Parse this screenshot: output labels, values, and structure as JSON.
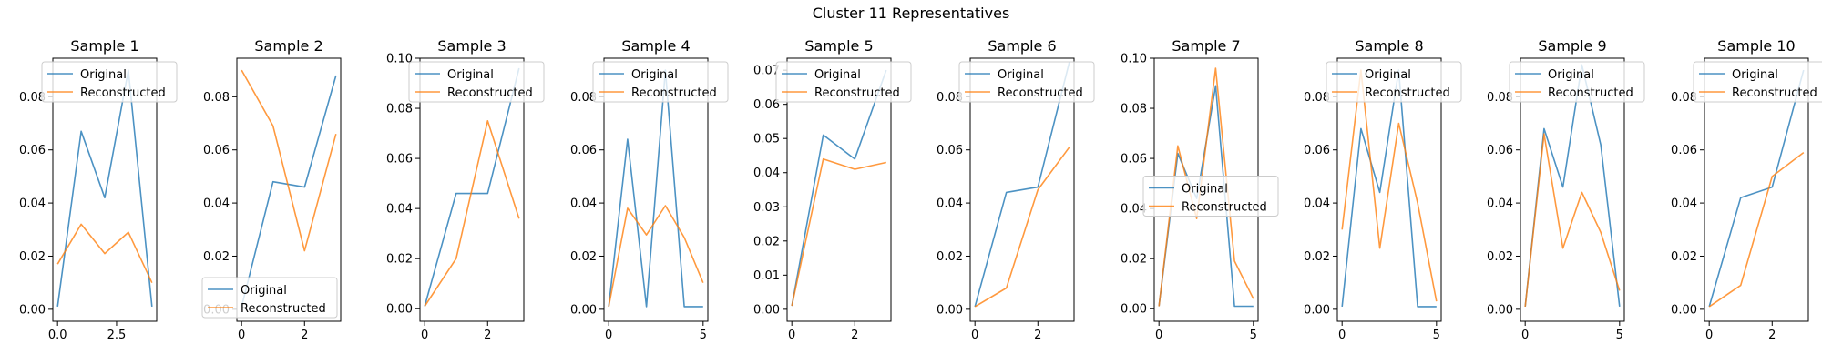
{
  "figure": {
    "suptitle": "Cluster 11 Representatives",
    "colors": {
      "original": "#1f77b4",
      "reconstructed": "#ff7f0e"
    },
    "legend_labels": {
      "original": "Original",
      "reconstructed": "Reconstructed"
    }
  },
  "chart_data": [
    {
      "type": "line",
      "title": "Sample 1",
      "x": [
        0,
        1,
        2,
        3,
        4
      ],
      "xlim": [
        -0.2,
        4.2
      ],
      "ylim": [
        -0.0045,
        0.0945
      ],
      "xticks": [
        0,
        2.5
      ],
      "xtick_labels": [
        "0.0",
        "2.5"
      ],
      "yticks": [
        0,
        0.02,
        0.04,
        0.06,
        0.08
      ],
      "ytick_labels": [
        "0.00",
        "0.02",
        "0.04",
        "0.06",
        "0.08"
      ],
      "legend": "upper left",
      "series": [
        {
          "name": "Original",
          "values": [
            0.001,
            0.067,
            0.042,
            0.09,
            0.001
          ]
        },
        {
          "name": "Reconstructed",
          "values": [
            0.017,
            0.032,
            0.021,
            0.029,
            0.01
          ]
        }
      ]
    },
    {
      "type": "line",
      "title": "Sample 2",
      "x": [
        0,
        1,
        2,
        3
      ],
      "xlim": [
        -0.15,
        3.15
      ],
      "ylim": [
        -0.0045,
        0.0945
      ],
      "xticks": [
        0,
        2
      ],
      "xtick_labels": [
        "0",
        "2"
      ],
      "yticks": [
        0,
        0.02,
        0.04,
        0.06,
        0.08
      ],
      "ytick_labels": [
        "0.00",
        "0.02",
        "0.04",
        "0.06",
        "0.08"
      ],
      "legend": "lower right",
      "series": [
        {
          "name": "Original",
          "values": [
            0.001,
            0.048,
            0.046,
            0.088
          ]
        },
        {
          "name": "Reconstructed",
          "values": [
            0.09,
            0.069,
            0.022,
            0.066
          ]
        }
      ]
    },
    {
      "type": "line",
      "title": "Sample 3",
      "x": [
        0,
        1,
        2,
        3
      ],
      "xlim": [
        -0.15,
        3.15
      ],
      "ylim": [
        -0.005,
        0.1
      ],
      "xticks": [
        0,
        2
      ],
      "xtick_labels": [
        "0",
        "2"
      ],
      "yticks": [
        0,
        0.02,
        0.04,
        0.06,
        0.08,
        0.1
      ],
      "ytick_labels": [
        "0.00",
        "0.02",
        "0.04",
        "0.06",
        "0.08",
        "0.10"
      ],
      "legend": "upper left",
      "series": [
        {
          "name": "Original",
          "values": [
            0.001,
            0.046,
            0.046,
            0.096
          ]
        },
        {
          "name": "Reconstructed",
          "values": [
            0.001,
            0.02,
            0.075,
            0.036
          ]
        }
      ]
    },
    {
      "type": "line",
      "title": "Sample 4",
      "x": [
        0,
        1,
        2,
        3,
        4,
        5
      ],
      "xlim": [
        -0.25,
        5.25
      ],
      "ylim": [
        -0.0045,
        0.0945
      ],
      "xticks": [
        0,
        5
      ],
      "xtick_labels": [
        "0",
        "5"
      ],
      "yticks": [
        0,
        0.02,
        0.04,
        0.06,
        0.08
      ],
      "ytick_labels": [
        "0.00",
        "0.02",
        "0.04",
        "0.06",
        "0.08"
      ],
      "legend": "upper left",
      "series": [
        {
          "name": "Original",
          "values": [
            0.001,
            0.064,
            0.001,
            0.09,
            0.001,
            0.001
          ]
        },
        {
          "name": "Reconstructed",
          "values": [
            0.001,
            0.038,
            0.028,
            0.039,
            0.027,
            0.01
          ]
        }
      ]
    },
    {
      "type": "line",
      "title": "Sample 5",
      "x": [
        0,
        1,
        2,
        3
      ],
      "xlim": [
        -0.15,
        3.15
      ],
      "ylim": [
        -0.0035,
        0.0735
      ],
      "xticks": [
        0,
        2
      ],
      "xtick_labels": [
        "0",
        "2"
      ],
      "yticks": [
        0,
        0.01,
        0.02,
        0.03,
        0.04,
        0.05,
        0.06,
        0.07
      ],
      "ytick_labels": [
        "0.00",
        "0.01",
        "0.02",
        "0.03",
        "0.04",
        "0.05",
        "0.06",
        "0.07"
      ],
      "legend": "upper left",
      "series": [
        {
          "name": "Original",
          "values": [
            0.001,
            0.051,
            0.044,
            0.07
          ]
        },
        {
          "name": "Reconstructed",
          "values": [
            0.001,
            0.044,
            0.041,
            0.043
          ]
        }
      ]
    },
    {
      "type": "line",
      "title": "Sample 6",
      "x": [
        0,
        1,
        2,
        3
      ],
      "xlim": [
        -0.15,
        3.15
      ],
      "ylim": [
        -0.0045,
        0.0945
      ],
      "xticks": [
        0,
        2
      ],
      "xtick_labels": [
        "0",
        "2"
      ],
      "yticks": [
        0,
        0.02,
        0.04,
        0.06,
        0.08
      ],
      "ytick_labels": [
        "0.00",
        "0.02",
        "0.04",
        "0.06",
        "0.08"
      ],
      "legend": "upper left",
      "series": [
        {
          "name": "Original",
          "values": [
            0.001,
            0.044,
            0.046,
            0.093
          ]
        },
        {
          "name": "Reconstructed",
          "values": [
            0.001,
            0.008,
            0.045,
            0.061
          ]
        }
      ]
    },
    {
      "type": "line",
      "title": "Sample 7",
      "x": [
        0,
        1,
        2,
        3,
        4,
        5
      ],
      "xlim": [
        -0.25,
        5.25
      ],
      "ylim": [
        -0.005,
        0.1
      ],
      "xticks": [
        0,
        5
      ],
      "xtick_labels": [
        "0",
        "5"
      ],
      "yticks": [
        0,
        0.02,
        0.04,
        0.06,
        0.08,
        0.1
      ],
      "ytick_labels": [
        "0.00",
        "0.02",
        "0.04",
        "0.06",
        "0.08",
        "0.10"
      ],
      "legend": "center left",
      "series": [
        {
          "name": "Original",
          "values": [
            0.001,
            0.062,
            0.044,
            0.089,
            0.001,
            0.001
          ]
        },
        {
          "name": "Reconstructed",
          "values": [
            0.001,
            0.065,
            0.036,
            0.096,
            0.019,
            0.004
          ]
        }
      ]
    },
    {
      "type": "line",
      "title": "Sample 8",
      "x": [
        0,
        1,
        2,
        3,
        4,
        5
      ],
      "xlim": [
        -0.25,
        5.25
      ],
      "ylim": [
        -0.0045,
        0.0945
      ],
      "xticks": [
        0,
        5
      ],
      "xtick_labels": [
        "0",
        "5"
      ],
      "yticks": [
        0,
        0.02,
        0.04,
        0.06,
        0.08
      ],
      "ytick_labels": [
        "0.00",
        "0.02",
        "0.04",
        "0.06",
        "0.08"
      ],
      "legend": "upper left",
      "series": [
        {
          "name": "Original",
          "values": [
            0.001,
            0.068,
            0.044,
            0.09,
            0.001,
            0.001
          ]
        },
        {
          "name": "Reconstructed",
          "values": [
            0.03,
            0.09,
            0.023,
            0.07,
            0.04,
            0.003
          ]
        }
      ]
    },
    {
      "type": "line",
      "title": "Sample 9",
      "x": [
        0,
        1,
        2,
        3,
        4,
        5
      ],
      "xlim": [
        -0.25,
        5.25
      ],
      "ylim": [
        -0.0045,
        0.0945
      ],
      "xticks": [
        0,
        5
      ],
      "xtick_labels": [
        "0",
        "5"
      ],
      "yticks": [
        0,
        0.02,
        0.04,
        0.06,
        0.08
      ],
      "ytick_labels": [
        "0.00",
        "0.02",
        "0.04",
        "0.06",
        "0.08"
      ],
      "legend": "upper left",
      "series": [
        {
          "name": "Original",
          "values": [
            0.001,
            0.068,
            0.046,
            0.092,
            0.062,
            0.001
          ]
        },
        {
          "name": "Reconstructed",
          "values": [
            0.001,
            0.066,
            0.023,
            0.044,
            0.029,
            0.007
          ]
        }
      ]
    },
    {
      "type": "line",
      "title": "Sample 10",
      "x": [
        0,
        1,
        2,
        3
      ],
      "xlim": [
        -0.15,
        3.15
      ],
      "ylim": [
        -0.0045,
        0.0945
      ],
      "xticks": [
        0,
        2
      ],
      "xtick_labels": [
        "0",
        "2"
      ],
      "yticks": [
        0,
        0.02,
        0.04,
        0.06,
        0.08
      ],
      "ytick_labels": [
        "0.00",
        "0.02",
        "0.04",
        "0.06",
        "0.08"
      ],
      "legend": "upper left",
      "series": [
        {
          "name": "Original",
          "values": [
            0.001,
            0.042,
            0.046,
            0.09
          ]
        },
        {
          "name": "Reconstructed",
          "values": [
            0.001,
            0.009,
            0.05,
            0.059
          ]
        }
      ]
    }
  ]
}
